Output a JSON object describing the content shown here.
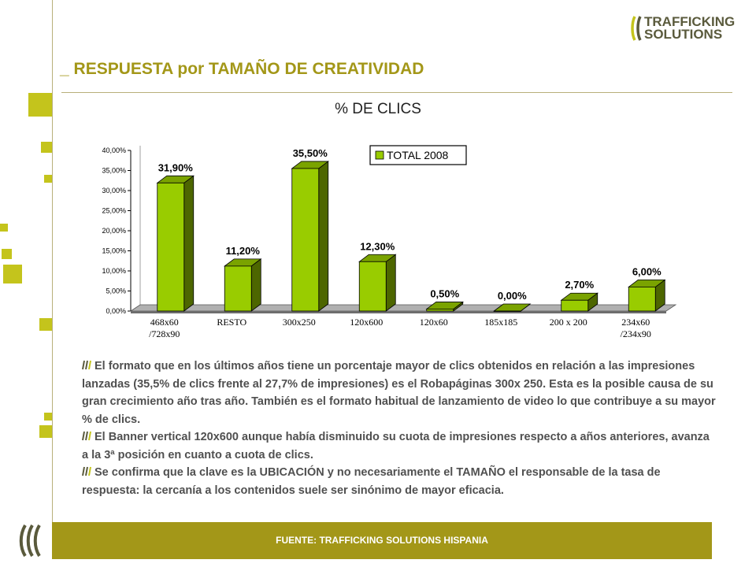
{
  "header": {
    "title_prefix": "_",
    "title": "RESPUESTA por TAMAÑO DE CREATIVIDAD",
    "logo_line1": "TRAFFICKING",
    "logo_line2": "SOLUTIONS"
  },
  "chart_data": {
    "type": "bar",
    "title": "% DE CLICS",
    "categories": [
      "468x60\n/728x90",
      "RESTO",
      "300x250",
      "120x600",
      "120x60",
      "185x185",
      "200 x 200",
      "234x60\n/234x90"
    ],
    "series": [
      {
        "name": "TOTAL 2008",
        "values": [
          31.9,
          11.2,
          35.5,
          12.3,
          0.5,
          0.0,
          2.7,
          6.0
        ]
      }
    ],
    "data_labels": [
      "31,90%",
      "11,20%",
      "35,50%",
      "12,30%",
      "0,50%",
      "0,00%",
      "2,70%",
      "6,00%"
    ],
    "y_ticks": [
      "0,00%",
      "5,00%",
      "10,00%",
      "15,00%",
      "20,00%",
      "25,00%",
      "30,00%",
      "35,00%",
      "40,00%"
    ],
    "ylim": [
      0,
      40
    ],
    "grid": false,
    "legend_position": "top-right",
    "colors": {
      "front": "#99cc00",
      "side": "#4d6600",
      "top": "#7aa300",
      "floor": "#8a8a8a"
    }
  },
  "body": {
    "paragraphs": [
      "El formato que en los últimos años tiene un porcentaje mayor de clics obtenidos en relación a las impresiones lanzadas (35,5% de clics frente al  27,7% de impresiones) es el Robapáginas 300x 250. Esta es la posible causa de su gran crecimiento año tras año. También es el formato habitual de lanzamiento de video lo que contribuye a su mayor % de clics.",
      "El Banner vertical 120x600 aunque había disminuido su cuota de impresiones respecto a años anteriores, avanza a la 3ª posición en cuanto a cuota de clics.",
      "Se confirma que la clave es la UBICACIÓN y no necesariamente el TAMAÑO el responsable de la tasa de respuesta: la cercanía a los contenidos suele ser sinónimo de mayor eficacia."
    ]
  },
  "footer": {
    "source": "FUENTE: TRAFFICKING SOLUTIONS HISPANIA"
  },
  "colors": {
    "accent": "#a39718",
    "square": "#c4c41c",
    "logo_dark": "#5a5a3c"
  }
}
